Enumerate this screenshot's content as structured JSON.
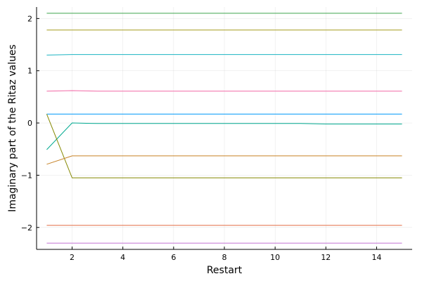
{
  "chart_data": {
    "type": "line",
    "title": "",
    "xlabel": "Restart",
    "ylabel": "Imaginary part of the Ritaz values",
    "xlim": [
      0.6,
      15.4
    ],
    "ylim": [
      -2.42,
      2.22
    ],
    "xticks": [
      2,
      4,
      6,
      8,
      10,
      12,
      14
    ],
    "yticks": [
      -2,
      -1,
      0,
      1,
      2
    ],
    "xtick_labels": [
      "2",
      "4",
      "6",
      "8",
      "10",
      "12",
      "14"
    ],
    "ytick_labels": [
      "−2",
      "−1",
      "0",
      "1",
      "2"
    ],
    "grid": true,
    "legend": "none",
    "x": [
      1,
      2,
      3,
      4,
      5,
      6,
      7,
      8,
      9,
      10,
      11,
      12,
      13,
      14,
      15
    ],
    "series": [
      {
        "color": "#3da44d",
        "values": [
          2.1,
          2.1,
          2.1,
          2.1,
          2.1,
          2.1,
          2.1,
          2.1,
          2.1,
          2.1,
          2.1,
          2.1,
          2.1,
          2.1,
          2.1
        ]
      },
      {
        "color": "#a59b1f",
        "values": [
          1.78,
          1.78,
          1.78,
          1.78,
          1.78,
          1.78,
          1.78,
          1.78,
          1.78,
          1.78,
          1.78,
          1.78,
          1.78,
          1.78,
          1.78
        ]
      },
      {
        "color": "#1cb4c2",
        "values": [
          1.3,
          1.31,
          1.31,
          1.31,
          1.31,
          1.31,
          1.31,
          1.31,
          1.31,
          1.31,
          1.31,
          1.31,
          1.31,
          1.31,
          1.31
        ]
      },
      {
        "color": "#f269a6",
        "values": [
          0.61,
          0.62,
          0.61,
          0.61,
          0.61,
          0.61,
          0.61,
          0.61,
          0.61,
          0.61,
          0.61,
          0.61,
          0.61,
          0.61,
          0.61
        ]
      },
      {
        "color": "#009afa",
        "values": [
          0.17,
          0.17,
          0.17,
          0.17,
          0.17,
          0.17,
          0.17,
          0.17,
          0.17,
          0.17,
          0.17,
          0.17,
          0.17,
          0.17,
          0.17
        ]
      },
      {
        "color": "#00a990",
        "values": [
          -0.51,
          0.0,
          -0.01,
          -0.01,
          -0.01,
          -0.01,
          -0.01,
          -0.01,
          -0.01,
          -0.01,
          -0.01,
          -0.02,
          -0.02,
          -0.02,
          -0.02
        ]
      },
      {
        "color": "#848800",
        "values": [
          0.17,
          -1.05,
          -1.05,
          -1.05,
          -1.05,
          -1.05,
          -1.05,
          -1.05,
          -1.05,
          -1.05,
          -1.05,
          -1.05,
          -1.05,
          -1.05,
          -1.05
        ]
      },
      {
        "color": "#c68125",
        "values": [
          -0.79,
          -0.63,
          -0.63,
          -0.63,
          -0.63,
          -0.63,
          -0.63,
          -0.63,
          -0.63,
          -0.63,
          -0.63,
          -0.63,
          -0.63,
          -0.63,
          -0.63
        ]
      },
      {
        "color": "#e26f46",
        "values": [
          -1.96,
          -1.96,
          -1.96,
          -1.96,
          -1.96,
          -1.96,
          -1.96,
          -1.96,
          -1.96,
          -1.96,
          -1.96,
          -1.96,
          -1.96,
          -1.96,
          -1.96
        ]
      },
      {
        "color": "#c271d2",
        "values": [
          -2.3,
          -2.3,
          -2.3,
          -2.3,
          -2.3,
          -2.3,
          -2.3,
          -2.3,
          -2.3,
          -2.3,
          -2.3,
          -2.3,
          -2.3,
          -2.3,
          -2.3
        ]
      }
    ]
  }
}
